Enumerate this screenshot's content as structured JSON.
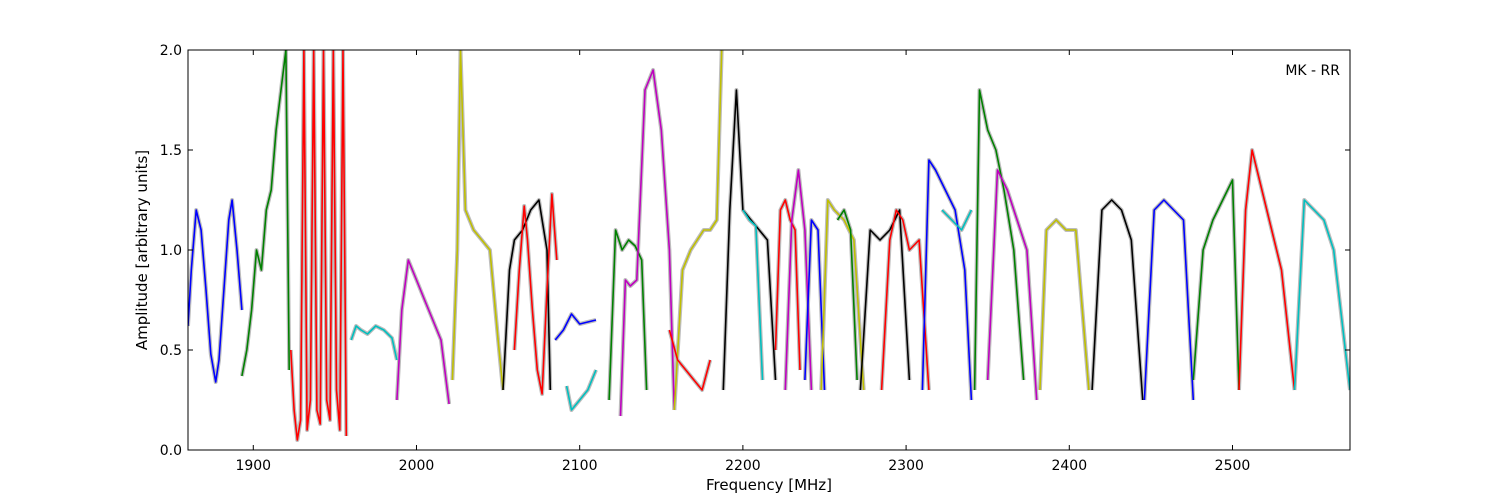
{
  "chart_data": {
    "type": "line",
    "title": "",
    "annotation": "MK - RR",
    "xlabel": "Frequency [MHz]",
    "ylabel": "Amplitude [arbitrary units]",
    "xlim": [
      1860,
      2572
    ],
    "ylim": [
      0.0,
      2.0
    ],
    "xticks": [
      1900,
      2000,
      2100,
      2200,
      2300,
      2400,
      2500
    ],
    "yticks": [
      0.0,
      0.5,
      1.0,
      1.5,
      2.0
    ],
    "xtick_labels": [
      "1900",
      "2000",
      "2100",
      "2200",
      "2300",
      "2400",
      "2500"
    ],
    "ytick_labels": [
      "0.0",
      "0.5",
      "1.0",
      "1.5",
      "2.0"
    ],
    "grid": false,
    "legend": "none",
    "series": [
      {
        "color": "#0000ff",
        "x": [
          1860,
          1862,
          1865,
          1868,
          1871,
          1874,
          1877,
          1879,
          1882,
          1885,
          1887,
          1890,
          1893
        ],
        "y": [
          0.62,
          0.9,
          1.2,
          1.1,
          0.8,
          0.48,
          0.34,
          0.45,
          0.8,
          1.15,
          1.25,
          1.0,
          0.7
        ]
      },
      {
        "color": "#008000",
        "x": [
          1893,
          1896,
          1899,
          1902,
          1905,
          1908,
          1911,
          1914,
          1917,
          1920,
          1922
        ],
        "y": [
          0.37,
          0.5,
          0.7,
          1.0,
          0.9,
          1.2,
          1.3,
          1.6,
          1.8,
          2.0,
          0.4
        ]
      },
      {
        "color": "#ff0000",
        "x": [
          1923,
          1925,
          1927,
          1929,
          1931,
          1933,
          1935,
          1937,
          1939,
          1941,
          1943,
          1945,
          1947,
          1949,
          1951,
          1953,
          1955,
          1957
        ],
        "y": [
          0.5,
          0.2,
          0.05,
          0.15,
          2.0,
          0.1,
          0.25,
          2.0,
          0.2,
          0.13,
          2.0,
          0.25,
          0.15,
          2.0,
          0.3,
          0.1,
          2.0,
          0.07
        ]
      },
      {
        "color": "#00bfbf",
        "x": [
          1960,
          1963,
          1966,
          1970,
          1975,
          1980,
          1985,
          1988
        ],
        "y": [
          0.55,
          0.62,
          0.6,
          0.58,
          0.62,
          0.6,
          0.56,
          0.45
        ]
      },
      {
        "color": "#bf00bf",
        "x": [
          1988,
          1991,
          1995,
          2000,
          2005,
          2010,
          2015,
          2020
        ],
        "y": [
          0.25,
          0.7,
          0.95,
          0.85,
          0.75,
          0.65,
          0.55,
          0.23
        ]
      },
      {
        "color": "#bfbf00",
        "x": [
          2022,
          2025,
          2027,
          2030,
          2035,
          2040,
          2045,
          2050,
          2053
        ],
        "y": [
          0.35,
          1.0,
          2.0,
          1.2,
          1.1,
          1.05,
          1.0,
          0.55,
          0.3
        ]
      },
      {
        "color": "#000000",
        "x": [
          2053,
          2057,
          2060,
          2065,
          2070,
          2075,
          2080,
          2082
        ],
        "y": [
          0.3,
          0.9,
          1.05,
          1.1,
          1.2,
          1.25,
          1.0,
          0.3
        ]
      },
      {
        "color": "#ff0000",
        "x": [
          2060,
          2063,
          2066,
          2068,
          2071,
          2074,
          2077,
          2080,
          2083,
          2086
        ],
        "y": [
          0.5,
          0.9,
          1.22,
          1.05,
          0.7,
          0.4,
          0.28,
          0.8,
          1.28,
          0.95
        ]
      },
      {
        "color": "#0000ff",
        "x": [
          2085,
          2090,
          2095,
          2100,
          2105,
          2110
        ],
        "y": [
          0.55,
          0.6,
          0.68,
          0.63,
          0.64,
          0.65
        ]
      },
      {
        "color": "#00bfbf",
        "x": [
          2092,
          2095,
          2100,
          2105,
          2110
        ],
        "y": [
          0.32,
          0.2,
          0.25,
          0.3,
          0.4
        ]
      },
      {
        "color": "#008000",
        "x": [
          2118,
          2122,
          2126,
          2130,
          2134,
          2138,
          2141
        ],
        "y": [
          0.25,
          1.1,
          1.0,
          1.05,
          1.02,
          0.95,
          0.3
        ]
      },
      {
        "color": "#bf00bf",
        "x": [
          2125,
          2128,
          2131,
          2135,
          2140,
          2145,
          2150,
          2155,
          2158
        ],
        "y": [
          0.17,
          0.85,
          0.82,
          0.85,
          1.8,
          1.9,
          1.6,
          1.0,
          0.2
        ]
      },
      {
        "color": "#bfbf00",
        "x": [
          2158,
          2163,
          2168,
          2172,
          2176,
          2180,
          2184,
          2187
        ],
        "y": [
          0.2,
          0.9,
          1.0,
          1.05,
          1.1,
          1.1,
          1.15,
          2.0
        ]
      },
      {
        "color": "#ff0000",
        "x": [
          2155,
          2160,
          2165,
          2170,
          2175,
          2180
        ],
        "y": [
          0.6,
          0.45,
          0.4,
          0.35,
          0.3,
          0.45
        ]
      },
      {
        "color": "#000000",
        "x": [
          2188,
          2192,
          2196,
          2200,
          2205,
          2210,
          2215,
          2220
        ],
        "y": [
          0.3,
          1.2,
          1.8,
          1.2,
          1.15,
          1.1,
          1.05,
          0.35
        ]
      },
      {
        "color": "#00bfbf",
        "x": [
          2200,
          2204,
          2208,
          2212
        ],
        "y": [
          1.2,
          1.15,
          1.12,
          0.35
        ]
      },
      {
        "color": "#ff0000",
        "x": [
          2220,
          2223,
          2226,
          2229,
          2232,
          2235
        ],
        "y": [
          0.5,
          1.2,
          1.25,
          1.15,
          1.1,
          0.4
        ]
      },
      {
        "color": "#bf00bf",
        "x": [
          2226,
          2230,
          2234,
          2238,
          2242
        ],
        "y": [
          0.3,
          1.15,
          1.4,
          1.1,
          0.3
        ]
      },
      {
        "color": "#0000ff",
        "x": [
          2238,
          2242,
          2246,
          2250
        ],
        "y": [
          0.35,
          1.15,
          1.1,
          0.3
        ]
      },
      {
        "color": "#bfbf00",
        "x": [
          2248,
          2252,
          2256,
          2262,
          2268,
          2274
        ],
        "y": [
          0.3,
          1.25,
          1.2,
          1.15,
          1.05,
          0.3
        ]
      },
      {
        "color": "#008000",
        "x": [
          2258,
          2262,
          2266,
          2270
        ],
        "y": [
          1.15,
          1.2,
          1.1,
          0.35
        ]
      },
      {
        "color": "#000000",
        "x": [
          2272,
          2278,
          2284,
          2290,
          2296,
          2302
        ],
        "y": [
          0.3,
          1.1,
          1.05,
          1.1,
          1.2,
          0.35
        ]
      },
      {
        "color": "#ff0000",
        "x": [
          2285,
          2290,
          2294,
          2298,
          2302,
          2308,
          2314
        ],
        "y": [
          0.3,
          1.05,
          1.2,
          1.15,
          1.0,
          1.05,
          0.3
        ]
      },
      {
        "color": "#0000ff",
        "x": [
          2310,
          2314,
          2318,
          2324,
          2330,
          2336,
          2340
        ],
        "y": [
          0.3,
          1.45,
          1.4,
          1.3,
          1.2,
          0.9,
          0.25
        ]
      },
      {
        "color": "#00bfbf",
        "x": [
          2322,
          2328,
          2334,
          2340
        ],
        "y": [
          1.2,
          1.15,
          1.1,
          1.2
        ]
      },
      {
        "color": "#008000",
        "x": [
          2342,
          2345,
          2350,
          2355,
          2360,
          2366,
          2372
        ],
        "y": [
          0.3,
          1.8,
          1.6,
          1.5,
          1.3,
          1.0,
          0.35
        ]
      },
      {
        "color": "#bf00bf",
        "x": [
          2350,
          2356,
          2362,
          2368,
          2374,
          2380
        ],
        "y": [
          0.35,
          1.4,
          1.3,
          1.15,
          1.0,
          0.25
        ]
      },
      {
        "color": "#bfbf00",
        "x": [
          2382,
          2386,
          2392,
          2398,
          2404,
          2412
        ],
        "y": [
          0.3,
          1.1,
          1.15,
          1.1,
          1.1,
          0.3
        ]
      },
      {
        "color": "#000000",
        "x": [
          2414,
          2420,
          2426,
          2432,
          2438,
          2445
        ],
        "y": [
          0.3,
          1.2,
          1.25,
          1.2,
          1.05,
          0.25
        ]
      },
      {
        "color": "#0000ff",
        "x": [
          2446,
          2452,
          2458,
          2464,
          2470,
          2476
        ],
        "y": [
          0.25,
          1.2,
          1.25,
          1.2,
          1.15,
          0.25
        ]
      },
      {
        "color": "#008000",
        "x": [
          2476,
          2482,
          2488,
          2494,
          2500,
          2504
        ],
        "y": [
          0.35,
          1.0,
          1.15,
          1.25,
          1.35,
          0.3
        ]
      },
      {
        "color": "#ff0000",
        "x": [
          2504,
          2508,
          2512,
          2518,
          2524,
          2530,
          2538
        ],
        "y": [
          0.3,
          1.2,
          1.5,
          1.3,
          1.1,
          0.9,
          0.3
        ]
      },
      {
        "color": "#00bfbf",
        "x": [
          2538,
          2544,
          2550,
          2556,
          2562,
          2572
        ],
        "y": [
          0.3,
          1.25,
          1.2,
          1.15,
          1.0,
          0.3
        ]
      }
    ]
  }
}
